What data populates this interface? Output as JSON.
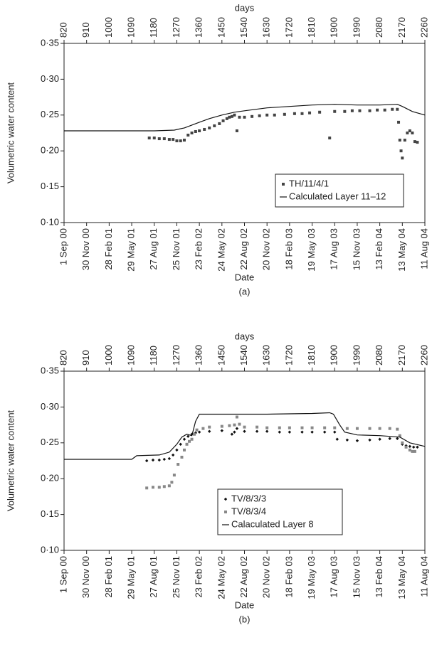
{
  "chart_data": [
    {
      "type": "combo",
      "panel_label": "(a)",
      "xlabel": "Date",
      "x2label": "days",
      "ylabel": "Volumetric water content",
      "xlim": [
        820,
        2260
      ],
      "ylim": [
        0.1,
        0.35
      ],
      "legend": "lower right",
      "xticks": [
        {
          "value": 820,
          "label": "1 Sep 00"
        },
        {
          "value": 910,
          "label": "30 Nov 00"
        },
        {
          "value": 1000,
          "label": "28 Feb 01"
        },
        {
          "value": 1090,
          "label": "29 May 01"
        },
        {
          "value": 1180,
          "label": "27 Aug 01"
        },
        {
          "value": 1270,
          "label": "25 Nov 01"
        },
        {
          "value": 1360,
          "label": "23 Feb 02"
        },
        {
          "value": 1450,
          "label": "24 May 02"
        },
        {
          "value": 1540,
          "label": "22 Aug 02"
        },
        {
          "value": 1630,
          "label": "20 Nov 02"
        },
        {
          "value": 1720,
          "label": "18 Feb 03"
        },
        {
          "value": 1810,
          "label": "19 May 03"
        },
        {
          "value": 1900,
          "label": "17 Aug 03"
        },
        {
          "value": 1990,
          "label": "15 Nov 03"
        },
        {
          "value": 2080,
          "label": "13 Feb 04"
        },
        {
          "value": 2170,
          "label": "13 May 04"
        },
        {
          "value": 2260,
          "label": "11 Aug 04"
        }
      ],
      "x2ticks": [
        820,
        910,
        1000,
        1090,
        1180,
        1270,
        1360,
        1450,
        1540,
        1630,
        1720,
        1810,
        1900,
        1990,
        2080,
        2170,
        2260
      ],
      "yticks": [
        {
          "value": 0.1,
          "label": "0·10"
        },
        {
          "value": 0.15,
          "label": "0·15"
        },
        {
          "value": 0.2,
          "label": "0·20"
        },
        {
          "value": 0.25,
          "label": "0·25"
        },
        {
          "value": 0.3,
          "label": "0·30"
        },
        {
          "value": 0.35,
          "label": "0·35"
        }
      ],
      "series": [
        {
          "name": "TH/11/4/1",
          "type": "scatter",
          "marker": "square",
          "color": "#444444",
          "x": [
            1160,
            1180,
            1200,
            1220,
            1240,
            1255,
            1270,
            1285,
            1300,
            1315,
            1330,
            1345,
            1360,
            1380,
            1400,
            1420,
            1440,
            1455,
            1470,
            1480,
            1490,
            1500,
            1510,
            1520,
            1540,
            1570,
            1600,
            1630,
            1660,
            1700,
            1740,
            1770,
            1800,
            1840,
            1880,
            1900,
            1940,
            1970,
            2000,
            2040,
            2070,
            2100,
            2130,
            2150,
            2155,
            2160,
            2165,
            2170,
            2180,
            2190,
            2200,
            2210,
            2220,
            2230
          ],
          "values": [
            0.218,
            0.218,
            0.217,
            0.217,
            0.216,
            0.216,
            0.214,
            0.214,
            0.215,
            0.222,
            0.225,
            0.227,
            0.228,
            0.23,
            0.232,
            0.235,
            0.238,
            0.242,
            0.245,
            0.247,
            0.248,
            0.25,
            0.228,
            0.247,
            0.247,
            0.248,
            0.249,
            0.25,
            0.25,
            0.251,
            0.252,
            0.252,
            0.253,
            0.254,
            0.218,
            0.255,
            0.255,
            0.256,
            0.256,
            0.256,
            0.257,
            0.257,
            0.258,
            0.258,
            0.24,
            0.215,
            0.2,
            0.19,
            0.215,
            0.225,
            0.228,
            0.225,
            0.213,
            0.212
          ]
        },
        {
          "name": "Calculated Layer 11–12",
          "type": "line",
          "color": "#111111",
          "x": [
            820,
            1000,
            1180,
            1260,
            1300,
            1330,
            1360,
            1400,
            1450,
            1500,
            1540,
            1630,
            1720,
            1810,
            1900,
            1990,
            2080,
            2150,
            2170,
            2210,
            2260
          ],
          "values": [
            0.228,
            0.228,
            0.228,
            0.229,
            0.232,
            0.236,
            0.24,
            0.245,
            0.25,
            0.254,
            0.256,
            0.26,
            0.262,
            0.264,
            0.265,
            0.264,
            0.264,
            0.265,
            0.262,
            0.255,
            0.25
          ]
        }
      ]
    },
    {
      "type": "combo",
      "panel_label": "(b)",
      "xlabel": "Date",
      "x2label": "days",
      "ylabel": "Volumetric water content",
      "xlim": [
        820,
        2260
      ],
      "ylim": [
        0.1,
        0.35
      ],
      "legend": "lower center",
      "xticks": [
        {
          "value": 820,
          "label": "1 Sep 00"
        },
        {
          "value": 910,
          "label": "30 Nov 00"
        },
        {
          "value": 1000,
          "label": "28 Feb 01"
        },
        {
          "value": 1090,
          "label": "29 May 01"
        },
        {
          "value": 1180,
          "label": "27 Aug 01"
        },
        {
          "value": 1270,
          "label": "25 Nov 01"
        },
        {
          "value": 1360,
          "label": "23 Feb 02"
        },
        {
          "value": 1450,
          "label": "24 May 02"
        },
        {
          "value": 1540,
          "label": "22 Aug 02"
        },
        {
          "value": 1630,
          "label": "20 Nov 02"
        },
        {
          "value": 1720,
          "label": "18 Feb 03"
        },
        {
          "value": 1810,
          "label": "19 May 03"
        },
        {
          "value": 1900,
          "label": "17 Aug 03"
        },
        {
          "value": 1990,
          "label": "15 Nov 03"
        },
        {
          "value": 2080,
          "label": "13 Feb 04"
        },
        {
          "value": 2170,
          "label": "13 May 04"
        },
        {
          "value": 2260,
          "label": "11 Aug 04"
        }
      ],
      "x2ticks": [
        820,
        910,
        1000,
        1090,
        1180,
        1270,
        1360,
        1450,
        1540,
        1630,
        1720,
        1810,
        1900,
        1990,
        2080,
        2170,
        2260
      ],
      "yticks": [
        {
          "value": 0.1,
          "label": "0·10"
        },
        {
          "value": 0.15,
          "label": "0·15"
        },
        {
          "value": 0.2,
          "label": "0·20"
        },
        {
          "value": 0.25,
          "label": "0·25"
        },
        {
          "value": 0.3,
          "label": "0·30"
        },
        {
          "value": 0.35,
          "label": "0·35"
        }
      ],
      "series": [
        {
          "name": "TV/8/3/3",
          "type": "scatter",
          "marker": "diamond",
          "color": "#111111",
          "x": [
            1150,
            1175,
            1200,
            1220,
            1240,
            1255,
            1270,
            1285,
            1300,
            1315,
            1330,
            1345,
            1360,
            1400,
            1450,
            1490,
            1500,
            1510,
            1540,
            1590,
            1630,
            1680,
            1720,
            1770,
            1810,
            1860,
            1900,
            1910,
            1950,
            1990,
            2040,
            2080,
            2120,
            2150,
            2170,
            2185,
            2200,
            2215,
            2230
          ],
          "values": [
            0.225,
            0.226,
            0.226,
            0.227,
            0.228,
            0.233,
            0.24,
            0.248,
            0.255,
            0.259,
            0.262,
            0.264,
            0.265,
            0.266,
            0.267,
            0.262,
            0.265,
            0.27,
            0.266,
            0.266,
            0.266,
            0.265,
            0.265,
            0.265,
            0.265,
            0.265,
            0.265,
            0.255,
            0.254,
            0.253,
            0.254,
            0.255,
            0.256,
            0.256,
            0.248,
            0.246,
            0.245,
            0.244,
            0.244
          ]
        },
        {
          "name": "TV/8/3/4",
          "type": "scatter",
          "marker": "square",
          "color": "#888888",
          "x": [
            1150,
            1175,
            1200,
            1220,
            1240,
            1250,
            1260,
            1275,
            1290,
            1300,
            1310,
            1320,
            1330,
            1340,
            1350,
            1375,
            1400,
            1450,
            1480,
            1500,
            1510,
            1520,
            1540,
            1590,
            1630,
            1680,
            1720,
            1770,
            1810,
            1860,
            1900,
            1950,
            1990,
            2040,
            2080,
            2120,
            2150,
            2160,
            2170,
            2185,
            2200,
            2210,
            2220
          ],
          "values": [
            0.187,
            0.188,
            0.188,
            0.189,
            0.19,
            0.195,
            0.205,
            0.22,
            0.23,
            0.24,
            0.248,
            0.252,
            0.255,
            0.262,
            0.268,
            0.27,
            0.272,
            0.273,
            0.274,
            0.275,
            0.286,
            0.276,
            0.272,
            0.272,
            0.271,
            0.271,
            0.271,
            0.271,
            0.271,
            0.271,
            0.271,
            0.27,
            0.27,
            0.27,
            0.27,
            0.27,
            0.269,
            0.26,
            0.25,
            0.244,
            0.24,
            0.238,
            0.238
          ]
        },
        {
          "name": "Calaculated Layer 8",
          "type": "line",
          "color": "#111111",
          "x": [
            820,
            1000,
            1090,
            1110,
            1200,
            1240,
            1270,
            1290,
            1310,
            1330,
            1345,
            1360,
            1450,
            1630,
            1810,
            1880,
            1895,
            1920,
            1940,
            1990,
            2080,
            2160,
            2200,
            2260
          ],
          "values": [
            0.227,
            0.227,
            0.227,
            0.232,
            0.233,
            0.237,
            0.248,
            0.258,
            0.262,
            0.26,
            0.28,
            0.29,
            0.29,
            0.29,
            0.291,
            0.292,
            0.29,
            0.275,
            0.265,
            0.261,
            0.26,
            0.258,
            0.25,
            0.245
          ]
        }
      ]
    }
  ]
}
